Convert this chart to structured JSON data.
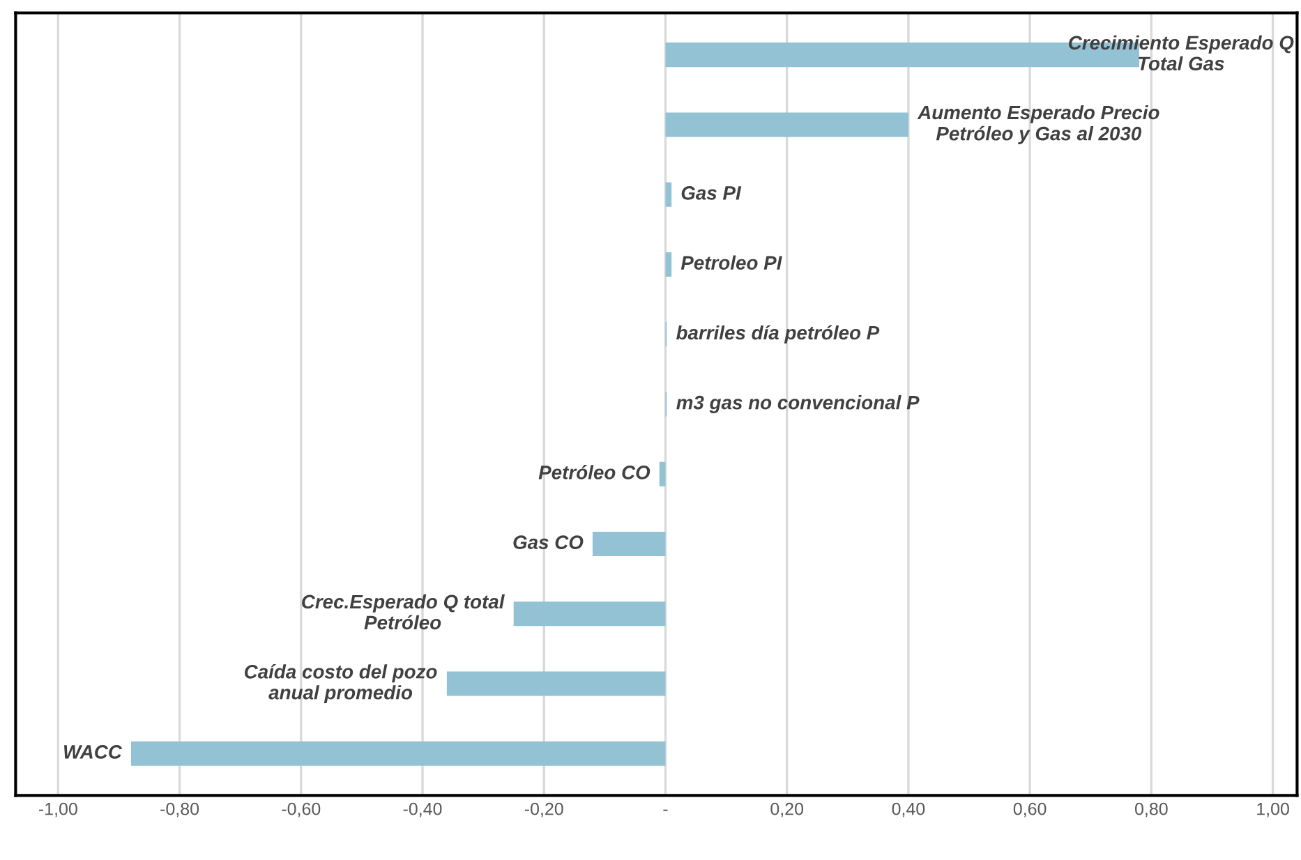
{
  "chart_data": {
    "type": "bar",
    "orientation": "horizontal",
    "categories": [
      "Crecimiento Esperado Q\nTotal Gas",
      "Aumento Esperado Precio\nPetróleo y Gas al 2030",
      "Gas PI",
      "Petroleo PI",
      "barriles día petróleo P",
      "m3 gas no convencional P",
      "Petróleo CO",
      "Gas CO",
      "Crec.Esperado Q total\nPetróleo",
      "Caída costo del pozo\nanual promedio",
      "WACC"
    ],
    "values": [
      0.78,
      0.4,
      0.01,
      0.01,
      0.002,
      0.002,
      -0.01,
      -0.12,
      -0.25,
      -0.36,
      -0.88
    ],
    "color": "#92c2d4",
    "xlim": [
      -1.07,
      1.04
    ],
    "xticks": [
      {
        "value": -1.0,
        "label": "-1,00"
      },
      {
        "value": -0.8,
        "label": "-0,80"
      },
      {
        "value": -0.6,
        "label": "-0,60"
      },
      {
        "value": -0.4,
        "label": "-0,40"
      },
      {
        "value": -0.2,
        "label": "-0,20"
      },
      {
        "value": 0,
        "label": "-"
      },
      {
        "value": 0.2,
        "label": "0,20"
      },
      {
        "value": 0.4,
        "label": "0,40"
      },
      {
        "value": 0.6,
        "label": "0,60"
      },
      {
        "value": 0.8,
        "label": "0,80"
      },
      {
        "value": 1.0,
        "label": "1,00"
      }
    ],
    "grid": "x"
  }
}
